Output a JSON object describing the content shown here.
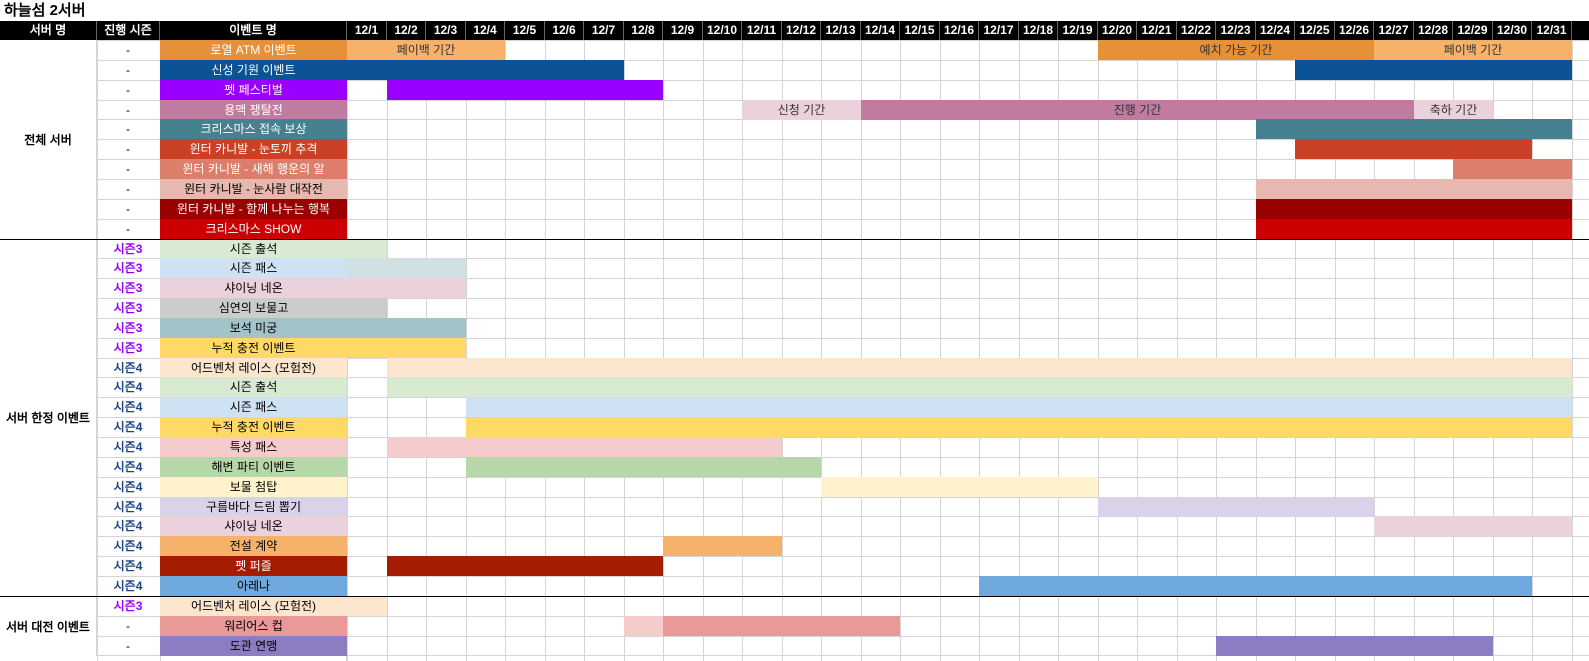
{
  "sheet_title": "하늘섬 2서버",
  "headers": {
    "server": "서버 명",
    "season": "진행 시즌",
    "event": "이벤트 명"
  },
  "dates": [
    "12/1",
    "12/2",
    "12/3",
    "12/4",
    "12/5",
    "12/6",
    "12/7",
    "12/8",
    "12/9",
    "12/10",
    "12/11",
    "12/12",
    "12/13",
    "12/14",
    "12/15",
    "12/16",
    "12/17",
    "12/18",
    "12/19",
    "12/20",
    "12/21",
    "12/22",
    "12/23",
    "12/24",
    "12/25",
    "12/26",
    "12/27",
    "12/28",
    "12/29",
    "12/30",
    "12/31"
  ],
  "groups": [
    {
      "label": "전체 서버",
      "start_row": 0,
      "row_count": 10
    },
    {
      "label": "서버 한정 이벤트",
      "start_row": 10,
      "row_count": 18
    },
    {
      "label": "서버 대전 이벤트",
      "start_row": 28,
      "row_count": 3
    }
  ],
  "rows": [
    {
      "season": "-",
      "name": "로열 ATM 이벤트",
      "color": "#e6913a",
      "text_color": "#ffffff",
      "bars": [
        {
          "start": 1,
          "end": 4,
          "color": "#f6b26b",
          "label": "페이백 기간"
        },
        {
          "start": 20,
          "end": 26,
          "color": "#e69138",
          "label": "예치 가능 기간"
        },
        {
          "start": 27,
          "end": 31,
          "color": "#f6b26b",
          "label": "페이백 기간"
        }
      ]
    },
    {
      "season": "-",
      "name": "신성 기원 이벤트",
      "color": "#0b5394",
      "text_color": "#ffffff",
      "bars": [
        {
          "start": 1,
          "end": 7,
          "color": "#0b5394",
          "label": ""
        },
        {
          "start": 25,
          "end": 31,
          "color": "#0b5394",
          "label": ""
        }
      ]
    },
    {
      "season": "-",
      "name": "펫 페스티벌",
      "color": "#9900ff",
      "text_color": "#ffffff",
      "bars": [
        {
          "start": 2,
          "end": 8,
          "color": "#9900ff",
          "label": ""
        }
      ]
    },
    {
      "season": "-",
      "name": "용맥 쟁탈전",
      "color": "#c27ba0",
      "text_color": "#ffffff",
      "bars": [
        {
          "start": 11,
          "end": 13,
          "color": "#ead1dc",
          "label": "신청 기간"
        },
        {
          "start": 14,
          "end": 27,
          "color": "#c27ba0",
          "label": "진행 기간"
        },
        {
          "start": 28,
          "end": 29,
          "color": "#ead1dc",
          "label": "축하 기간"
        }
      ]
    },
    {
      "season": "-",
      "name": "크리스마스 접속 보상",
      "color": "#45818e",
      "text_color": "#ffffff",
      "bars": [
        {
          "start": 24,
          "end": 31,
          "color": "#45818e",
          "label": ""
        }
      ]
    },
    {
      "season": "-",
      "name": "윈터 카니발 - 눈토끼 추격",
      "color": "#cc4125",
      "text_color": "#ffffff",
      "bars": [
        {
          "start": 25,
          "end": 30,
          "color": "#cc4125",
          "label": ""
        }
      ]
    },
    {
      "season": "-",
      "name": "윈터 카니발 - 새해 행운의 알",
      "color": "#dd7e6b",
      "text_color": "#ffffff",
      "bars": [
        {
          "start": 29,
          "end": 31,
          "color": "#dd7e6b",
          "label": ""
        }
      ]
    },
    {
      "season": "-",
      "name": "윈터 카니발 - 눈사람 대작전",
      "color": "#e6b8af",
      "text_color": "#000000",
      "bars": [
        {
          "start": 24,
          "end": 31,
          "color": "#e6b8af",
          "label": ""
        }
      ]
    },
    {
      "season": "-",
      "name": "윈터 카니발 - 함께 나누는 행복",
      "color": "#990000",
      "text_color": "#ffffff",
      "bars": [
        {
          "start": 24,
          "end": 31,
          "color": "#990000",
          "label": ""
        }
      ]
    },
    {
      "season": "-",
      "name": "크리스마스 SHOW",
      "color": "#cc0000",
      "text_color": "#ffffff",
      "bars": [
        {
          "start": 24,
          "end": 31,
          "color": "#cc0000",
          "label": ""
        }
      ]
    },
    {
      "season": "시즌3",
      "season_color": "#9900ff",
      "name": "시즌 출석",
      "color": "#d9ead3",
      "text_color": "#000000",
      "bars": [
        {
          "start": 1,
          "end": 1,
          "color": "#d9ead3",
          "label": ""
        }
      ]
    },
    {
      "season": "시즌3",
      "season_color": "#9900ff",
      "name": "시즌 패스",
      "color": "#cfe2f3",
      "text_color": "#000000",
      "bars": [
        {
          "start": 1,
          "end": 3,
          "color": "#d0e0e3",
          "label": ""
        }
      ]
    },
    {
      "season": "시즌3",
      "season_color": "#9900ff",
      "name": "샤이닝 네온",
      "color": "#ead1dc",
      "text_color": "#000000",
      "bars": [
        {
          "start": 1,
          "end": 3,
          "color": "#ead1dc",
          "label": ""
        }
      ]
    },
    {
      "season": "시즌3",
      "season_color": "#9900ff",
      "name": "심연의 보물고",
      "color": "#cccccc",
      "text_color": "#000000",
      "bars": [
        {
          "start": 1,
          "end": 1,
          "color": "#cccccc",
          "label": ""
        }
      ]
    },
    {
      "season": "시즌3",
      "season_color": "#9900ff",
      "name": "보석 미궁",
      "color": "#a2c4c9",
      "text_color": "#000000",
      "bars": [
        {
          "start": 1,
          "end": 3,
          "color": "#a2c4c9",
          "label": ""
        }
      ]
    },
    {
      "season": "시즌3",
      "season_color": "#9900ff",
      "name": "누적 충전 이벤트",
      "color": "#ffd966",
      "text_color": "#000000",
      "bars": [
        {
          "start": 1,
          "end": 3,
          "color": "#ffd966",
          "label": ""
        }
      ]
    },
    {
      "season": "시즌4",
      "season_color": "#1c4587",
      "name": "어드벤처 레이스 (모험전)",
      "color": "#fce5cd",
      "text_color": "#000000",
      "bars": [
        {
          "start": 2,
          "end": 31,
          "color": "#fce5cd",
          "label": ""
        }
      ]
    },
    {
      "season": "시즌4",
      "season_color": "#1c4587",
      "name": "시즌 출석",
      "color": "#d9ead3",
      "text_color": "#000000",
      "bars": [
        {
          "start": 2,
          "end": 31,
          "color": "#d9ead3",
          "label": ""
        }
      ]
    },
    {
      "season": "시즌4",
      "season_color": "#1c4587",
      "name": "시즌 패스",
      "color": "#cfe2f3",
      "text_color": "#000000",
      "bars": [
        {
          "start": 4,
          "end": 31,
          "color": "#cfe2f3",
          "label": ""
        }
      ]
    },
    {
      "season": "시즌4",
      "season_color": "#1c4587",
      "name": "누적 충전 이벤트",
      "color": "#ffd966",
      "text_color": "#000000",
      "bars": [
        {
          "start": 4,
          "end": 31,
          "color": "#ffd966",
          "label": ""
        }
      ]
    },
    {
      "season": "시즌4",
      "season_color": "#1c4587",
      "name": "특성 패스",
      "color": "#f4cccc",
      "text_color": "#000000",
      "bars": [
        {
          "start": 2,
          "end": 11,
          "color": "#f4cccc",
          "label": ""
        }
      ]
    },
    {
      "season": "시즌4",
      "season_color": "#1c4587",
      "name": "해변 파티 이벤트",
      "color": "#b6d7a8",
      "text_color": "#000000",
      "bars": [
        {
          "start": 4,
          "end": 12,
          "color": "#b6d7a8",
          "label": ""
        }
      ]
    },
    {
      "season": "시즌4",
      "season_color": "#1c4587",
      "name": "보물 첨탑",
      "color": "#fff2cc",
      "text_color": "#000000",
      "bars": [
        {
          "start": 13,
          "end": 19,
          "color": "#fff2cc",
          "label": ""
        }
      ]
    },
    {
      "season": "시즌4",
      "season_color": "#1c4587",
      "name": "구름바다 드림 뽑기",
      "color": "#d9d2e9",
      "text_color": "#000000",
      "bars": [
        {
          "start": 20,
          "end": 26,
          "color": "#d9d2e9",
          "label": ""
        }
      ]
    },
    {
      "season": "시즌4",
      "season_color": "#1c4587",
      "name": "샤이닝 네온",
      "color": "#ead1dc",
      "text_color": "#000000",
      "bars": [
        {
          "start": 27,
          "end": 31,
          "color": "#ead1dc",
          "label": ""
        }
      ]
    },
    {
      "season": "시즌4",
      "season_color": "#1c4587",
      "name": "전설 계약",
      "color": "#f6b26b",
      "text_color": "#000000",
      "bars": [
        {
          "start": 9,
          "end": 11,
          "color": "#f6b26b",
          "label": ""
        }
      ]
    },
    {
      "season": "시즌4",
      "season_color": "#1c4587",
      "name": "펫 퍼즐",
      "color": "#a61c00",
      "text_color": "#ffffff",
      "bars": [
        {
          "start": 2,
          "end": 8,
          "color": "#a61c00",
          "label": ""
        }
      ]
    },
    {
      "season": "시즌4",
      "season_color": "#1c4587",
      "name": "아레나",
      "color": "#6fa8dc",
      "text_color": "#000000",
      "bars": [
        {
          "start": 17,
          "end": 30,
          "color": "#6fa8dc",
          "label": ""
        }
      ]
    },
    {
      "season": "시즌3",
      "season_color": "#9900ff",
      "name": "어드벤처 레이스 (모험전)",
      "color": "#fce5cd",
      "text_color": "#000000",
      "bars": [
        {
          "start": 1,
          "end": 1,
          "color": "#fce5cd",
          "label": ""
        }
      ]
    },
    {
      "season": "-",
      "name": "워리어스 컵",
      "color": "#ea9999",
      "text_color": "#000000",
      "bars": [
        {
          "start": 8,
          "end": 8,
          "color": "#f4cccc",
          "label": ""
        },
        {
          "start": 9,
          "end": 14,
          "color": "#ea9999",
          "label": ""
        }
      ]
    },
    {
      "season": "-",
      "name": "도관 연맹",
      "color": "#8e7cc3",
      "text_color": "#000000",
      "bars": [
        {
          "start": 23,
          "end": 29,
          "color": "#8e7cc3",
          "label": ""
        }
      ]
    }
  ]
}
